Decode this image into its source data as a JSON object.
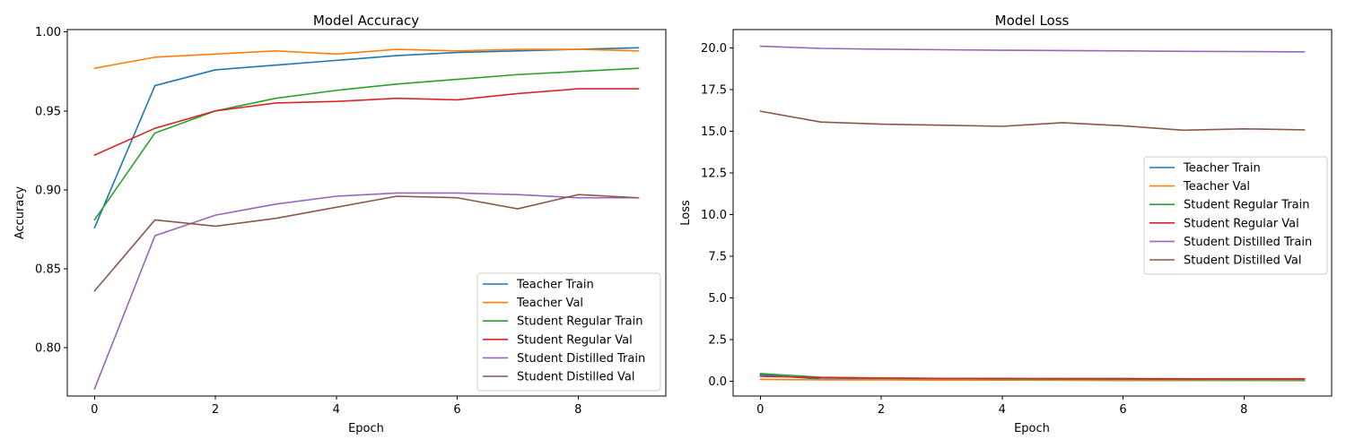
{
  "chart_data": [
    {
      "type": "line",
      "title": "Model Accuracy",
      "xlabel": "Epoch",
      "ylabel": "Accuracy",
      "xlim": [
        -0.45,
        9.45
      ],
      "ylim": [
        0.7695,
        1.0015
      ],
      "xticks": [
        0,
        2,
        4,
        6,
        8
      ],
      "xtick_labels": [
        "0",
        "2",
        "4",
        "6",
        "8"
      ],
      "yticks": [
        0.8,
        0.85,
        0.9,
        0.95,
        1.0
      ],
      "ytick_labels": [
        "0.80",
        "0.85",
        "0.90",
        "0.95",
        "1.00"
      ],
      "legend_position": "lower-right",
      "x": [
        0,
        1,
        2,
        3,
        4,
        5,
        6,
        7,
        8,
        9
      ],
      "series": [
        {
          "name": "Teacher Train",
          "color": "#1f77b4",
          "values": [
            0.876,
            0.966,
            0.976,
            0.979,
            0.982,
            0.985,
            0.987,
            0.988,
            0.989,
            0.99
          ]
        },
        {
          "name": "Teacher Val",
          "color": "#ff7f0e",
          "values": [
            0.977,
            0.984,
            0.986,
            0.988,
            0.986,
            0.989,
            0.988,
            0.989,
            0.989,
            0.988
          ]
        },
        {
          "name": "Student Regular Train",
          "color": "#2ca02c",
          "values": [
            0.881,
            0.936,
            0.95,
            0.958,
            0.963,
            0.967,
            0.97,
            0.973,
            0.975,
            0.977
          ]
        },
        {
          "name": "Student Regular Val",
          "color": "#d62728",
          "values": [
            0.922,
            0.939,
            0.95,
            0.955,
            0.956,
            0.958,
            0.957,
            0.961,
            0.964,
            0.964
          ]
        },
        {
          "name": "Student Distilled Train",
          "color": "#9467bd",
          "values": [
            0.774,
            0.871,
            0.884,
            0.891,
            0.896,
            0.898,
            0.898,
            0.897,
            0.895,
            0.895
          ]
        },
        {
          "name": "Student Distilled Val",
          "color": "#8c564b",
          "values": [
            0.836,
            0.881,
            0.877,
            0.882,
            0.889,
            0.896,
            0.895,
            0.888,
            0.897,
            0.895
          ]
        }
      ]
    },
    {
      "type": "line",
      "title": "Model Loss",
      "xlabel": "Epoch",
      "ylabel": "Loss",
      "xlim": [
        -0.45,
        9.45
      ],
      "ylim": [
        -0.9,
        21.1
      ],
      "xticks": [
        0,
        2,
        4,
        6,
        8
      ],
      "xtick_labels": [
        "0",
        "2",
        "4",
        "6",
        "8"
      ],
      "yticks": [
        0.0,
        2.5,
        5.0,
        7.5,
        10.0,
        12.5,
        15.0,
        17.5,
        20.0
      ],
      "ytick_labels": [
        "0.0",
        "2.5",
        "5.0",
        "7.5",
        "10.0",
        "12.5",
        "15.0",
        "17.5",
        "20.0"
      ],
      "legend_position": "center-right",
      "x": [
        0,
        1,
        2,
        3,
        4,
        5,
        6,
        7,
        8,
        9
      ],
      "series": [
        {
          "name": "Teacher Train",
          "color": "#1f77b4",
          "values": [
            0.38,
            0.12,
            0.09,
            0.07,
            0.06,
            0.05,
            0.04,
            0.04,
            0.04,
            0.03
          ]
        },
        {
          "name": "Teacher Val",
          "color": "#ff7f0e",
          "values": [
            0.1,
            0.07,
            0.07,
            0.06,
            0.07,
            0.06,
            0.06,
            0.06,
            0.06,
            0.06
          ]
        },
        {
          "name": "Student Regular Train",
          "color": "#2ca02c",
          "values": [
            0.45,
            0.23,
            0.18,
            0.15,
            0.13,
            0.12,
            0.11,
            0.1,
            0.09,
            0.09
          ]
        },
        {
          "name": "Student Regular Val",
          "color": "#d62728",
          "values": [
            0.28,
            0.21,
            0.18,
            0.16,
            0.16,
            0.15,
            0.15,
            0.14,
            0.14,
            0.14
          ]
        },
        {
          "name": "Student Distilled Train",
          "color": "#9467bd",
          "values": [
            20.1,
            19.97,
            19.92,
            19.89,
            19.86,
            19.84,
            19.82,
            19.79,
            19.78,
            19.76
          ]
        },
        {
          "name": "Student Distilled Val",
          "color": "#8c564b",
          "values": [
            16.2,
            15.55,
            15.42,
            15.36,
            15.29,
            15.51,
            15.32,
            15.06,
            15.14,
            15.08
          ]
        }
      ]
    }
  ]
}
